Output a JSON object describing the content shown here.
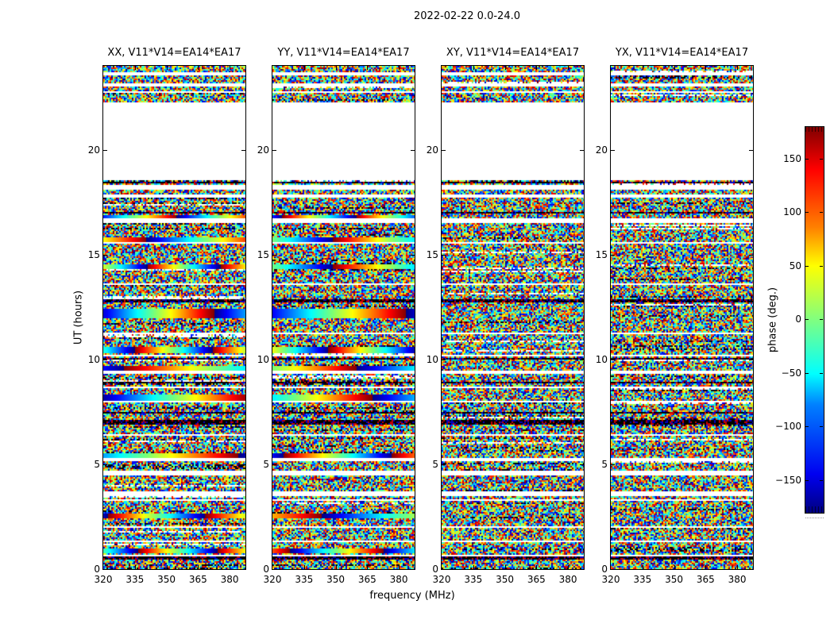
{
  "figure": {
    "title": "2022-02-22 0.0-24.0",
    "xlabel": "frequency (MHz)",
    "ylabel": "UT (hours)",
    "background": "#ffffff"
  },
  "axes": {
    "x_tick_labels": [
      "320",
      "335",
      "350",
      "365",
      "380"
    ],
    "y_tick_labels": [
      "0",
      "5",
      "10",
      "15",
      "20"
    ],
    "cbar_tick_labels": [
      "150",
      "100",
      "50",
      "0",
      "−50",
      "−100",
      "−150"
    ]
  },
  "chart_data": {
    "type": "heatmap",
    "title": "2022-02-22 0.0-24.0",
    "xlabel": "frequency (MHz)",
    "ylabel": "UT (hours)",
    "x_range_mhz": [
      320,
      387.5
    ],
    "x_ticks": [
      320,
      335,
      350,
      365,
      380
    ],
    "y_range_hours": [
      0,
      24
    ],
    "y_ticks": [
      0,
      5,
      10,
      15,
      20
    ],
    "grid": false,
    "colorbar": {
      "label": "phase (deg.)",
      "range_deg": [
        -180,
        180
      ],
      "ticks": [
        150,
        100,
        50,
        0,
        -50,
        -100,
        -150
      ],
      "colormap": "jet",
      "side": "right"
    },
    "panels": [
      {
        "pol": "XX",
        "title": "XX, V11*V14=EA14*EA17",
        "seed": 101,
        "has_smooth_streaks": true
      },
      {
        "pol": "YY",
        "title": "YY, V11*V14=EA14*EA17",
        "seed": 202,
        "has_smooth_streaks": true
      },
      {
        "pol": "XY",
        "title": "XY, V11*V14=EA14*EA17",
        "seed": 303,
        "has_smooth_streaks": false
      },
      {
        "pol": "YX",
        "title": "YX, V11*V14=EA14*EA17",
        "seed": 404,
        "has_smooth_streaks": false
      }
    ],
    "content": "random visibility phase noise (-180..180 deg, jet colormap) vs frequency and UT",
    "no_data_gaps_ut": [
      [
        23.55,
        23.72
      ],
      [
        23.05,
        23.2
      ],
      [
        22.72,
        22.79
      ],
      [
        18.55,
        22.28
      ],
      [
        18.12,
        18.3
      ],
      [
        17.72,
        17.9
      ],
      [
        16.5,
        16.72
      ],
      [
        15.52,
        15.6
      ],
      [
        13.55,
        13.63
      ],
      [
        11.2,
        11.28
      ],
      [
        10.15,
        10.22
      ],
      [
        9.3,
        9.45
      ],
      [
        8.62,
        8.7
      ],
      [
        7.95,
        8.02
      ],
      [
        6.35,
        6.45
      ],
      [
        5.15,
        5.32
      ],
      [
        4.45,
        4.7
      ],
      [
        3.5,
        3.72
      ],
      [
        3.22,
        3.3
      ],
      [
        2.0,
        2.08
      ],
      [
        1.3,
        1.38
      ],
      [
        0.62,
        0.68
      ]
    ],
    "dark_rows_ut": [
      [
        18.42,
        0.06
      ],
      [
        16.98,
        0.05
      ],
      [
        12.78,
        0.06
      ],
      [
        10.05,
        0.05
      ],
      [
        8.92,
        0.05
      ],
      [
        7.45,
        0.05
      ],
      [
        7.02,
        0.1
      ],
      [
        0.52,
        0.05
      ]
    ],
    "smooth_streaks_ut": [
      {
        "ut": 16.78,
        "h": 0.18
      },
      {
        "ut": 15.68,
        "h": 0.25
      },
      {
        "ut": 14.42,
        "h": 0.25
      },
      {
        "ut": 12.2,
        "h": 0.4
      },
      {
        "ut": 10.45,
        "h": 0.25
      },
      {
        "ut": 9.55,
        "h": 0.22
      },
      {
        "ut": 8.2,
        "h": 0.28
      },
      {
        "ut": 5.42,
        "h": 0.2
      },
      {
        "ut": 2.52,
        "h": 0.25
      },
      {
        "ut": 0.88,
        "h": 0.22
      }
    ],
    "jet_stops": [
      [
        0.0,
        "#000080"
      ],
      [
        0.11,
        "#0000ff"
      ],
      [
        0.36,
        "#00ffff"
      ],
      [
        0.5,
        "#78ff78"
      ],
      [
        0.64,
        "#ffff00"
      ],
      [
        0.89,
        "#ff0000"
      ],
      [
        1.0,
        "#800000"
      ]
    ]
  }
}
